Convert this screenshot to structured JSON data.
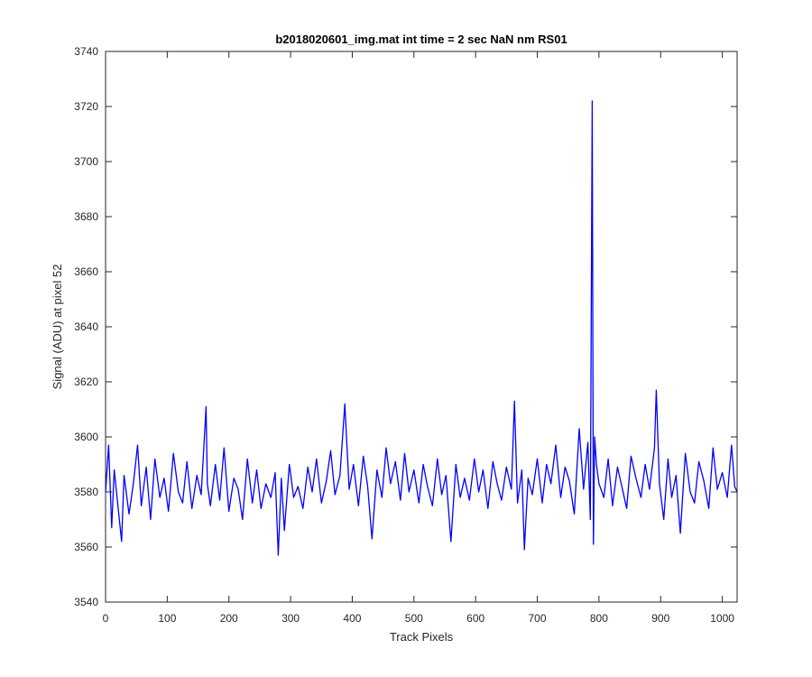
{
  "chart_data": {
    "type": "line",
    "title": "b2018020601_img.mat int time = 2 sec  NaN nm RS01",
    "xlabel": "Track Pixels",
    "ylabel": "Signal (ADU) at pixel 52",
    "xlim": [
      0,
      1024
    ],
    "ylim": [
      3540,
      3740
    ],
    "xticks": [
      0,
      100,
      200,
      300,
      400,
      500,
      600,
      700,
      800,
      900,
      1000
    ],
    "yticks": [
      3540,
      3560,
      3580,
      3600,
      3620,
      3640,
      3660,
      3680,
      3700,
      3720,
      3740
    ],
    "grid": false,
    "line_color": "#0000ff",
    "series": [
      {
        "x": [
          0,
          5,
          10,
          14,
          20,
          26,
          30,
          38,
          45,
          52,
          58,
          66,
          73,
          80,
          88,
          95,
          102,
          110,
          118,
          125,
          132,
          140,
          148,
          155,
          163,
          165,
          170,
          178,
          185,
          192,
          200,
          208,
          215,
          222,
          230,
          238,
          245,
          252,
          260,
          268,
          275,
          280,
          285,
          290,
          298,
          305,
          312,
          320,
          328,
          335,
          342,
          350,
          358,
          365,
          372,
          380,
          388,
          395,
          402,
          410,
          418,
          425,
          432,
          440,
          448,
          455,
          462,
          470,
          478,
          485,
          492,
          500,
          508,
          515,
          522,
          530,
          538,
          545,
          552,
          560,
          568,
          575,
          582,
          590,
          598,
          605,
          612,
          620,
          628,
          635,
          642,
          650,
          658,
          663,
          668,
          675,
          679,
          685,
          692,
          700,
          708,
          715,
          722,
          730,
          738,
          745,
          752,
          760,
          768,
          775,
          782,
          786,
          789,
          791,
          793,
          796,
          800,
          808,
          815,
          822,
          830,
          838,
          845,
          852,
          860,
          868,
          875,
          882,
          890,
          893,
          898,
          905,
          912,
          918,
          925,
          932,
          940,
          948,
          955,
          962,
          970,
          978,
          985,
          992,
          1000,
          1008,
          1015,
          1020,
          1024
        ],
        "y": [
          3580,
          3597,
          3567,
          3588,
          3575,
          3562,
          3586,
          3572,
          3583,
          3597,
          3575,
          3589,
          3570,
          3592,
          3578,
          3585,
          3573,
          3594,
          3580,
          3576,
          3591,
          3574,
          3586,
          3579,
          3611,
          3583,
          3575,
          3590,
          3577,
          3596,
          3573,
          3585,
          3581,
          3570,
          3592,
          3576,
          3588,
          3574,
          3583,
          3578,
          3587,
          3557,
          3585,
          3566,
          3590,
          3578,
          3582,
          3574,
          3589,
          3580,
          3592,
          3576,
          3584,
          3595,
          3579,
          3586,
          3612,
          3581,
          3590,
          3575,
          3593,
          3582,
          3563,
          3588,
          3578,
          3596,
          3583,
          3591,
          3577,
          3594,
          3580,
          3588,
          3576,
          3590,
          3582,
          3575,
          3592,
          3579,
          3586,
          3562,
          3590,
          3578,
          3585,
          3577,
          3592,
          3580,
          3588,
          3574,
          3591,
          3583,
          3577,
          3589,
          3581,
          3613,
          3576,
          3588,
          3559,
          3585,
          3579,
          3592,
          3576,
          3590,
          3583,
          3597,
          3578,
          3589,
          3584,
          3572,
          3603,
          3581,
          3598,
          3570,
          3722,
          3561,
          3600,
          3590,
          3583,
          3578,
          3592,
          3575,
          3589,
          3581,
          3574,
          3593,
          3585,
          3578,
          3590,
          3581,
          3596,
          3617,
          3583,
          3570,
          3592,
          3578,
          3586,
          3565,
          3594,
          3580,
          3576,
          3591,
          3584,
          3574,
          3596,
          3581,
          3587,
          3578,
          3597,
          3582,
          3580
        ]
      }
    ]
  }
}
